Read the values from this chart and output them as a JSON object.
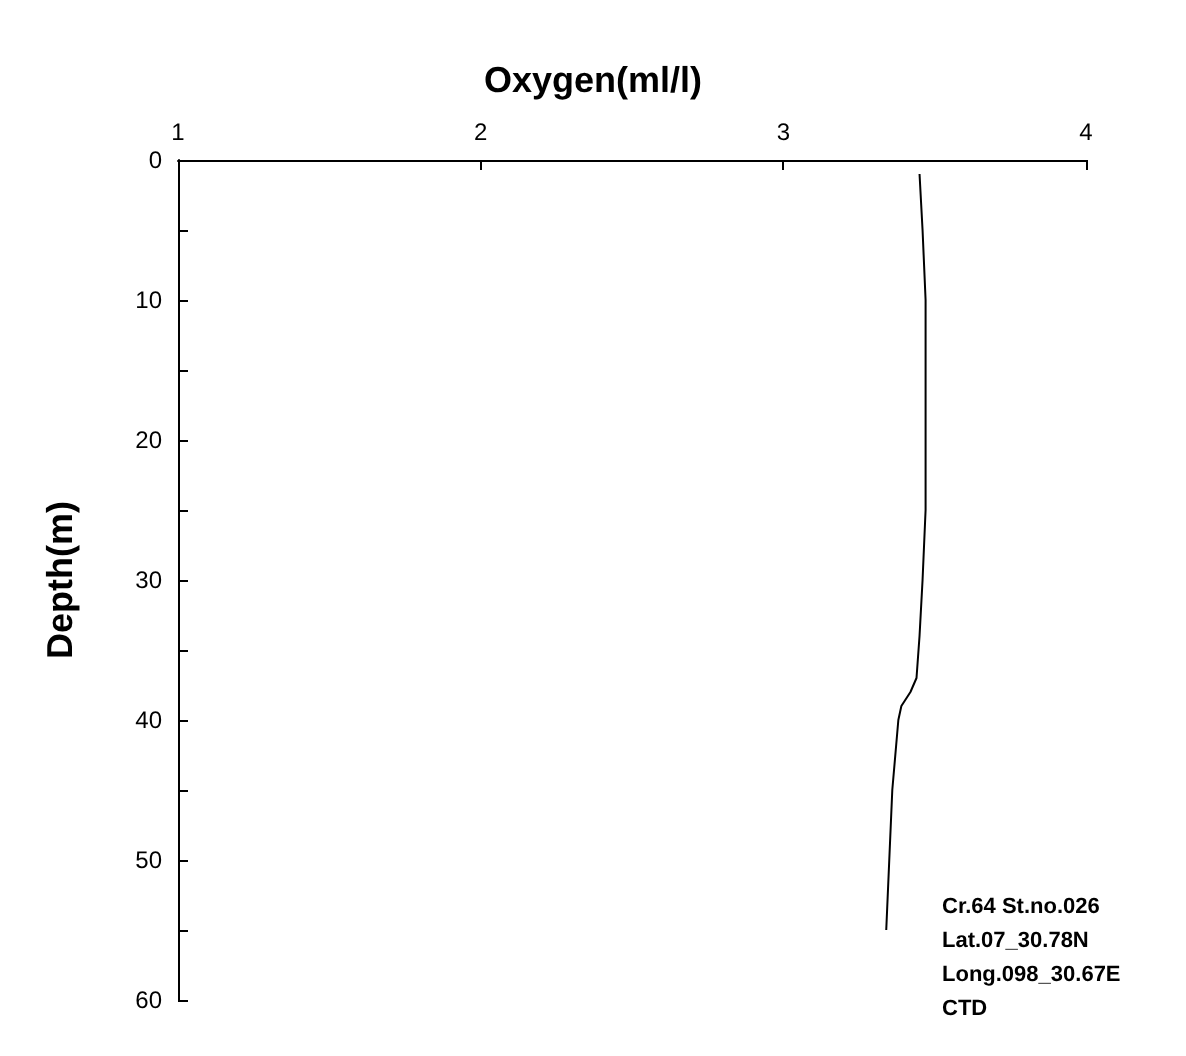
{
  "chart_data": {
    "type": "line",
    "xlabel": "Oxygen(ml/l)",
    "ylabel": "Depth(m)",
    "series": [
      {
        "color": "#000000",
        "x": [
          3.45,
          3.46,
          3.47,
          3.47,
          3.47,
          3.46,
          3.45,
          3.44,
          3.42,
          3.39,
          3.38,
          3.36,
          3.35,
          3.34
        ],
        "values": [
          1,
          5,
          10,
          20,
          25,
          30,
          34,
          37,
          38,
          39,
          40,
          45,
          50,
          55
        ]
      }
    ],
    "xlim": [
      1,
      4
    ],
    "xticks": [
      1,
      2,
      3,
      4
    ],
    "ylim": [
      60,
      0
    ],
    "yticks": [
      0,
      {
        "value": 5,
        "label": null
      },
      10,
      {
        "value": 15,
        "label": null
      },
      20,
      {
        "value": 25,
        "label": null
      },
      30,
      {
        "value": 35,
        "label": null
      },
      40,
      {
        "value": 45,
        "label": null
      },
      50,
      {
        "value": 55,
        "label": null
      },
      60
    ],
    "grid": false,
    "marker": "none",
    "line_style": "solid",
    "annotations": [
      "Cr.64 St.no.026",
      "Lat.07_30.78N",
      "Long.098_30.67E",
      "CTD"
    ]
  }
}
